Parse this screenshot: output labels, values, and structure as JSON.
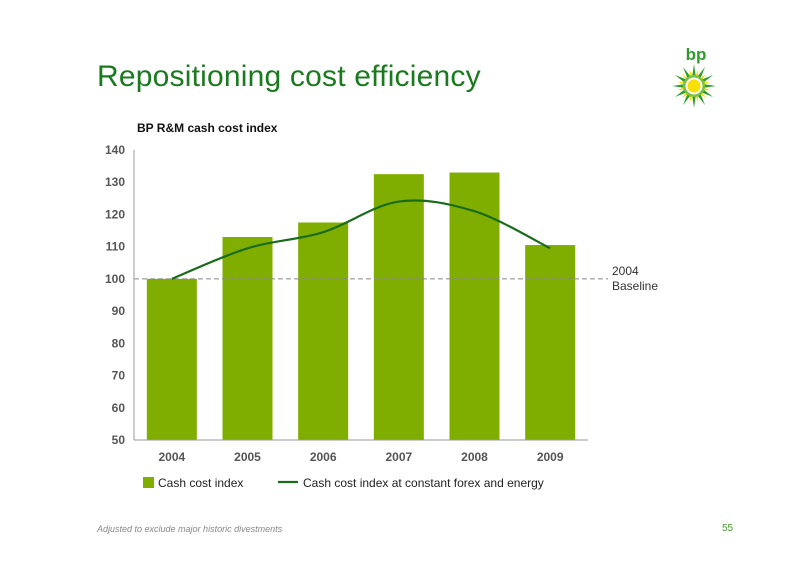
{
  "slide": {
    "title": "Repositioning cost efficiency",
    "logo_text": "bp",
    "footnote": "Adjusted to exclude major historic divestments",
    "page_number": "55"
  },
  "colors": {
    "title": "#1a7a1e",
    "bar": "#80ae00",
    "line": "#1a6b1a",
    "baseline": "#888888",
    "logo_green": "#2e9d2e",
    "logo_yellow": "#f7e000"
  },
  "chart_data": {
    "type": "bar",
    "title": "BP R&M cash cost index",
    "xlabel": "",
    "ylabel": "",
    "categories": [
      "2004",
      "2005",
      "2006",
      "2007",
      "2008",
      "2009"
    ],
    "ylim": [
      50,
      140
    ],
    "yticks": [
      50,
      60,
      70,
      80,
      90,
      100,
      110,
      120,
      130,
      140
    ],
    "grid": false,
    "legend_position": "bottom",
    "series": [
      {
        "name": "Cash cost index",
        "kind": "bar",
        "values": [
          100,
          113,
          117.5,
          132.5,
          133,
          110.5
        ]
      },
      {
        "name": "Cash cost index at constant forex and energy",
        "kind": "line",
        "values": [
          100,
          109.5,
          114.5,
          124,
          121,
          109.5
        ]
      }
    ],
    "reference_line": {
      "value": 100,
      "label_line1": "2004",
      "label_line2": "Baseline"
    }
  }
}
